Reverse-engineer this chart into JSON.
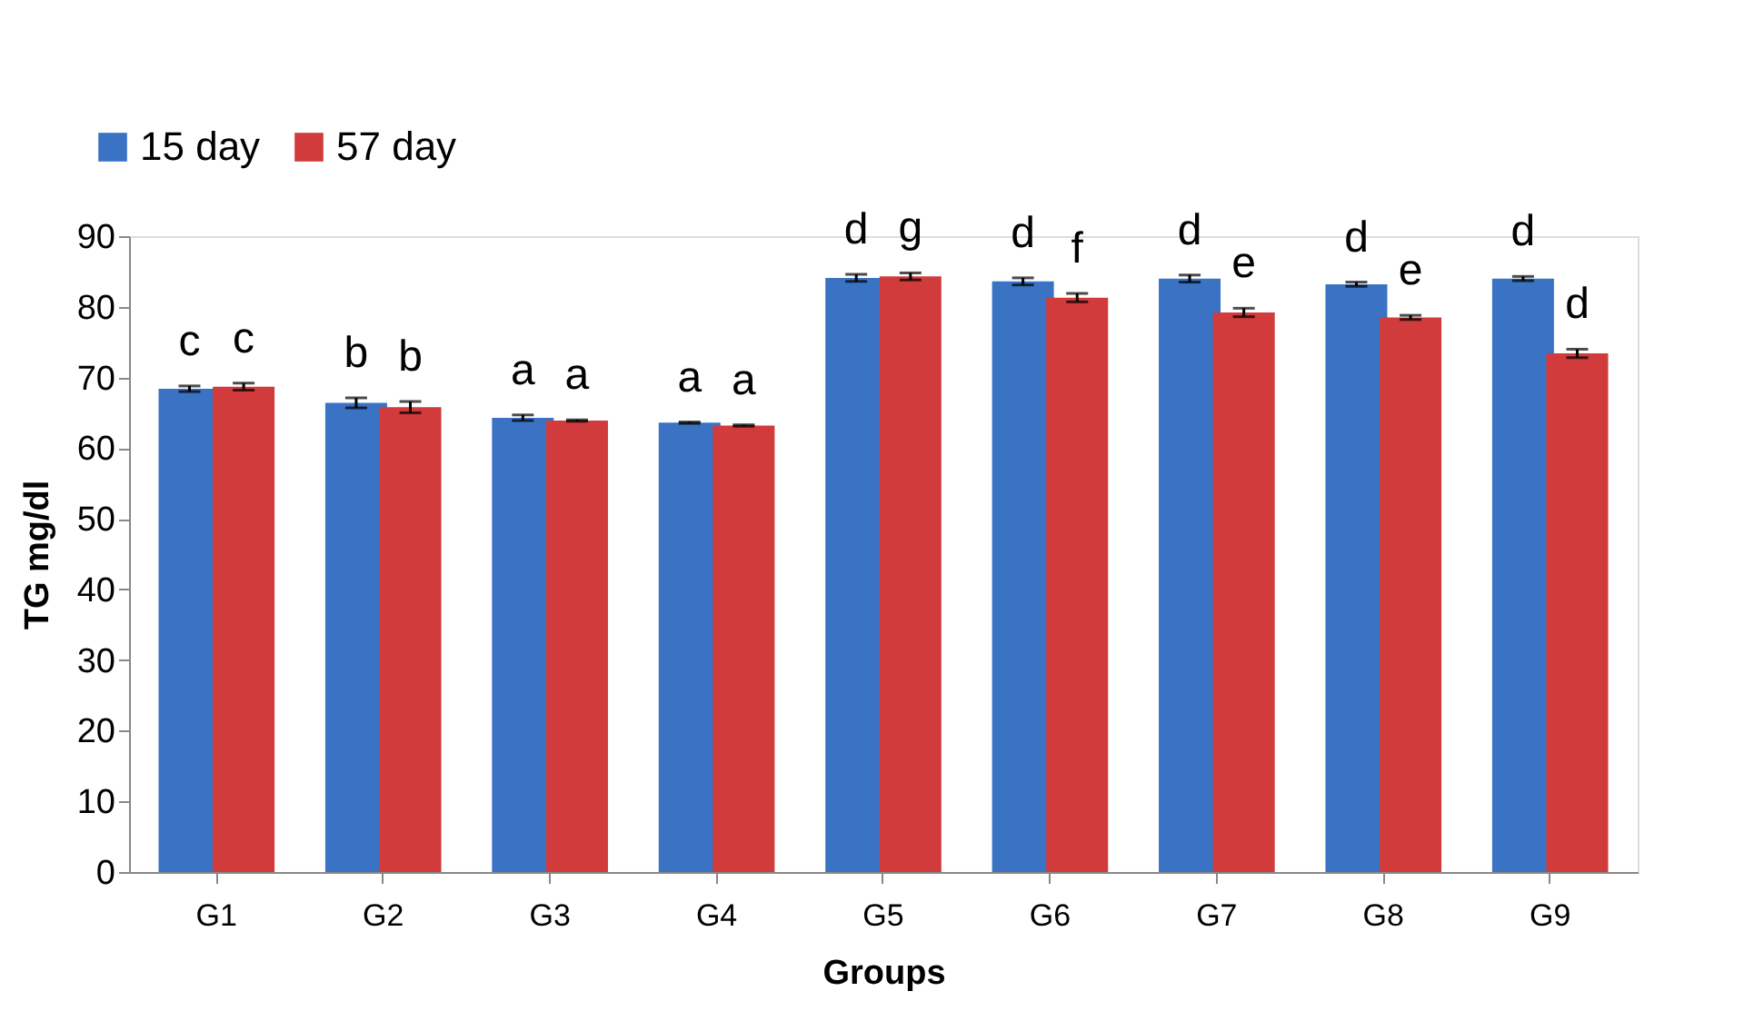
{
  "chart_data": {
    "type": "bar",
    "xlabel": "Groups",
    "ylabel": "TG mg/dl",
    "categories": [
      "G1",
      "G2",
      "G3",
      "G4",
      "G5",
      "G6",
      "G7",
      "G8",
      "G9"
    ],
    "series": [
      {
        "name": "15 day",
        "color": "#3b73c4",
        "values": [
          68.4,
          66.4,
          64.3,
          63.6,
          84.1,
          83.6,
          84.0,
          83.2,
          84.0
        ],
        "errors": [
          0.4,
          0.7,
          0.4,
          0.1,
          0.5,
          0.5,
          0.5,
          0.3,
          0.3
        ],
        "value_labels": [
          "c",
          "b",
          "a",
          "a",
          "d",
          "d",
          "d",
          "d",
          "d"
        ]
      },
      {
        "name": "57 day",
        "color": "#d13b3b",
        "values": [
          68.7,
          65.8,
          63.9,
          63.2,
          84.3,
          81.3,
          79.2,
          78.5,
          73.4
        ],
        "errors": [
          0.5,
          0.8,
          0.1,
          0.1,
          0.5,
          0.6,
          0.6,
          0.3,
          0.6
        ],
        "value_labels": [
          "c",
          "b",
          "a",
          "a",
          "g",
          "f",
          "e",
          "e",
          "d"
        ]
      }
    ],
    "ylim": [
      0,
      90
    ],
    "yticks": [
      0,
      10,
      20,
      30,
      40,
      50,
      60,
      70,
      80,
      90
    ],
    "grid": false,
    "legend": "top left"
  }
}
